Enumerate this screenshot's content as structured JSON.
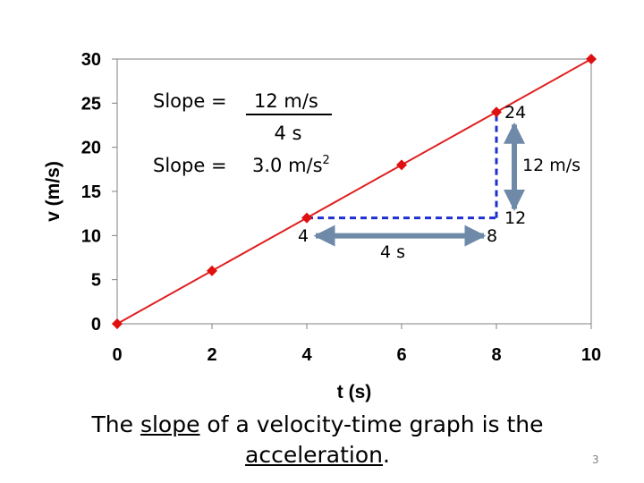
{
  "chart_data": {
    "type": "line",
    "title": "",
    "xlabel": "t (s)",
    "ylabel": "v (m/s)",
    "xlim": [
      0,
      10
    ],
    "ylim": [
      0,
      30
    ],
    "x_ticks": [
      0,
      2,
      4,
      6,
      8,
      10
    ],
    "y_ticks": [
      0,
      5,
      10,
      15,
      20,
      25,
      30
    ],
    "grid": false,
    "series": [
      {
        "name": "velocity",
        "color": "#e02020",
        "marker_color": "#e01010",
        "points": [
          [
            0,
            0
          ],
          [
            2,
            6
          ],
          [
            4,
            12
          ],
          [
            6,
            18
          ],
          [
            8,
            24
          ],
          [
            10,
            30
          ]
        ]
      }
    ],
    "annotations": {
      "run": {
        "from": [
          4,
          12
        ],
        "to": [
          8,
          12
        ]
      },
      "rise": {
        "from": [
          8,
          12
        ],
        "to": [
          8,
          24
        ]
      },
      "arrow_color": "#6e8aa8",
      "dash_color": "#1f2fd0",
      "label_4": "4",
      "label_8": "8",
      "label_4s": "4 s",
      "label_24": "24",
      "label_12": "12",
      "label_12ms": "12 m/s",
      "slope_eq_1_prefix": "Slope = ",
      "slope_eq_1_numerator": "12 m/s",
      "slope_eq_denominator": "4 s",
      "slope_eq_2_prefix": "Slope = ",
      "slope_eq_2_value": "3.0 m/s",
      "slope_eq_2_exponent": "2"
    }
  },
  "caption": {
    "part1": "The ",
    "underlined1": "slope",
    "part2": " of a velocity-time graph is the ",
    "underlined2": "acceleration",
    "part3": "."
  },
  "page_number": "3"
}
